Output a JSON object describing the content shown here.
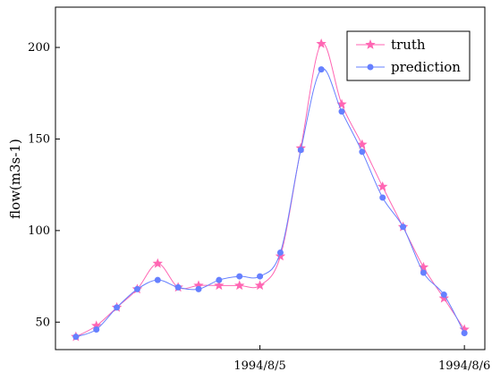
{
  "chart_data": {
    "type": "line",
    "title": "",
    "xlabel": "",
    "ylabel": "flow(m3s-1)",
    "x_tick_labels": [
      "1994/8/5",
      "1994/8/6"
    ],
    "x_tick_positions": [
      10,
      20
    ],
    "xlim": [
      0,
      21
    ],
    "ylim": [
      35,
      222
    ],
    "y_ticks": [
      50,
      100,
      150,
      200
    ],
    "legend_position": "top-right",
    "grid": false,
    "x": [
      1,
      2,
      3,
      4,
      5,
      6,
      7,
      8,
      9,
      10,
      11,
      12,
      13,
      14,
      15,
      16,
      17,
      18,
      19,
      20
    ],
    "series": [
      {
        "name": "truth",
        "color": "#ff66b3",
        "marker": "star",
        "values": [
          42,
          48,
          58,
          68,
          82,
          69,
          70,
          70,
          70,
          70,
          86,
          145,
          202,
          169,
          147,
          124,
          102,
          80,
          63,
          46
        ]
      },
      {
        "name": "prediction",
        "color": "#6680ff",
        "marker": "circle",
        "values": [
          42,
          46,
          58,
          68,
          73,
          69,
          68,
          73,
          75,
          75,
          88,
          144,
          188,
          165,
          143,
          118,
          102,
          77,
          65,
          44
        ]
      }
    ]
  }
}
